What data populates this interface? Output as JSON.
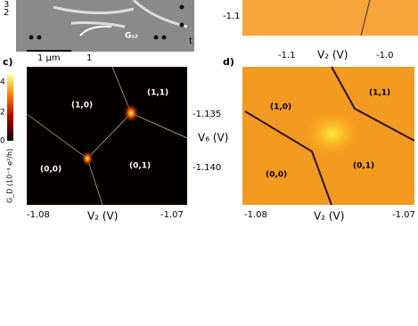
{
  "panel_a": {
    "labels": [
      "3",
      "2",
      "1",
      "t"
    ],
    "gate_label": "Gₛ₂",
    "scale_bar": "1 μm"
  },
  "panel_b": {
    "y_tick": "-1.1",
    "x_ticks": [
      "-1.1",
      "-1.0"
    ],
    "x_label": "V₂ (V)"
  },
  "panel_c": {
    "label": "c)",
    "colorbar_ticks": [
      "4",
      "2",
      "0"
    ],
    "colorbar_label": "G_D (10⁻³ e²/h)",
    "regions": [
      "(1,0)",
      "(1,1)",
      "(0,0)",
      "(0,1)"
    ],
    "y_ticks": [
      "-1.135",
      "-1.140"
    ],
    "y_label": "V₆ (V)",
    "x_ticks": [
      "-1.08",
      "-1.07"
    ],
    "x_label": "V₂ (V)"
  },
  "panel_d": {
    "label": "d)",
    "regions": [
      "(1,0)",
      "(1,1)",
      "(0,0)",
      "(0,1)"
    ],
    "x_ticks": [
      "-1.08",
      "-1.07"
    ],
    "x_label": "V₂ (V)"
  }
}
